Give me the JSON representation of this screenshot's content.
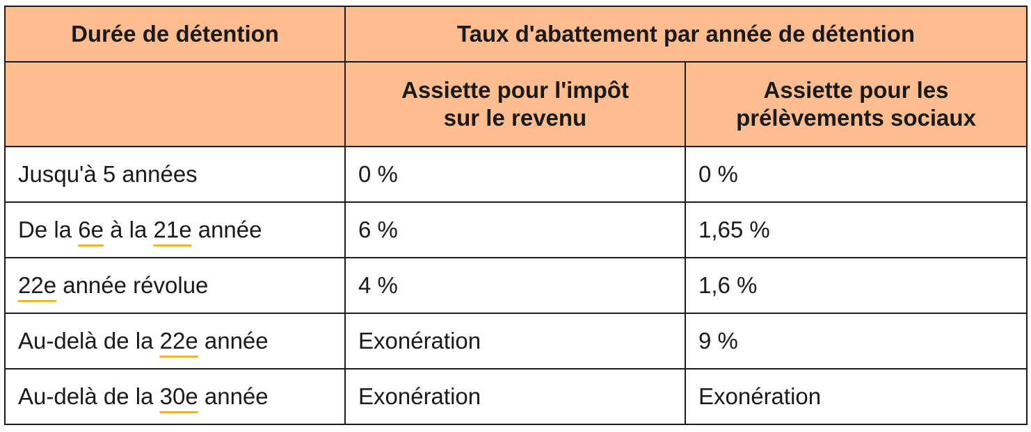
{
  "header": {
    "col1": "Durée de détention",
    "group": "Taux d'abattement par année de détention",
    "sub_ir_line1": "Assiette pour l'impôt",
    "sub_ir_line2": "sur le revenu",
    "sub_ps_line1": "Assiette pour les",
    "sub_ps_line2": "prélèvements sociaux"
  },
  "rows": [
    {
      "duree": {
        "a": "Jusqu'à 5 années"
      },
      "ir": "0 %",
      "ps": "0 %"
    },
    {
      "duree": {
        "a": "De la ",
        "u1": "6e",
        "b": " à la ",
        "u2": "21e",
        "c": " année"
      },
      "ir": "6 %",
      "ps": "1,65 %"
    },
    {
      "duree": {
        "u1": "22e",
        "b": " année révolue"
      },
      "ir": "4 %",
      "ps": "1,6 %"
    },
    {
      "duree": {
        "a": "Au-delà de la ",
        "u1": "22e",
        "b": " année"
      },
      "ir": "Exonération",
      "ps": "9 %"
    },
    {
      "duree": {
        "a": "Au-delà de la ",
        "u1": "30e",
        "b": " année"
      },
      "ir": "Exonération",
      "ps": "Exonération"
    }
  ],
  "colors": {
    "header_bg": "#fdbd8e",
    "underline": "#f3b13a",
    "border": "#1a1a1a"
  }
}
